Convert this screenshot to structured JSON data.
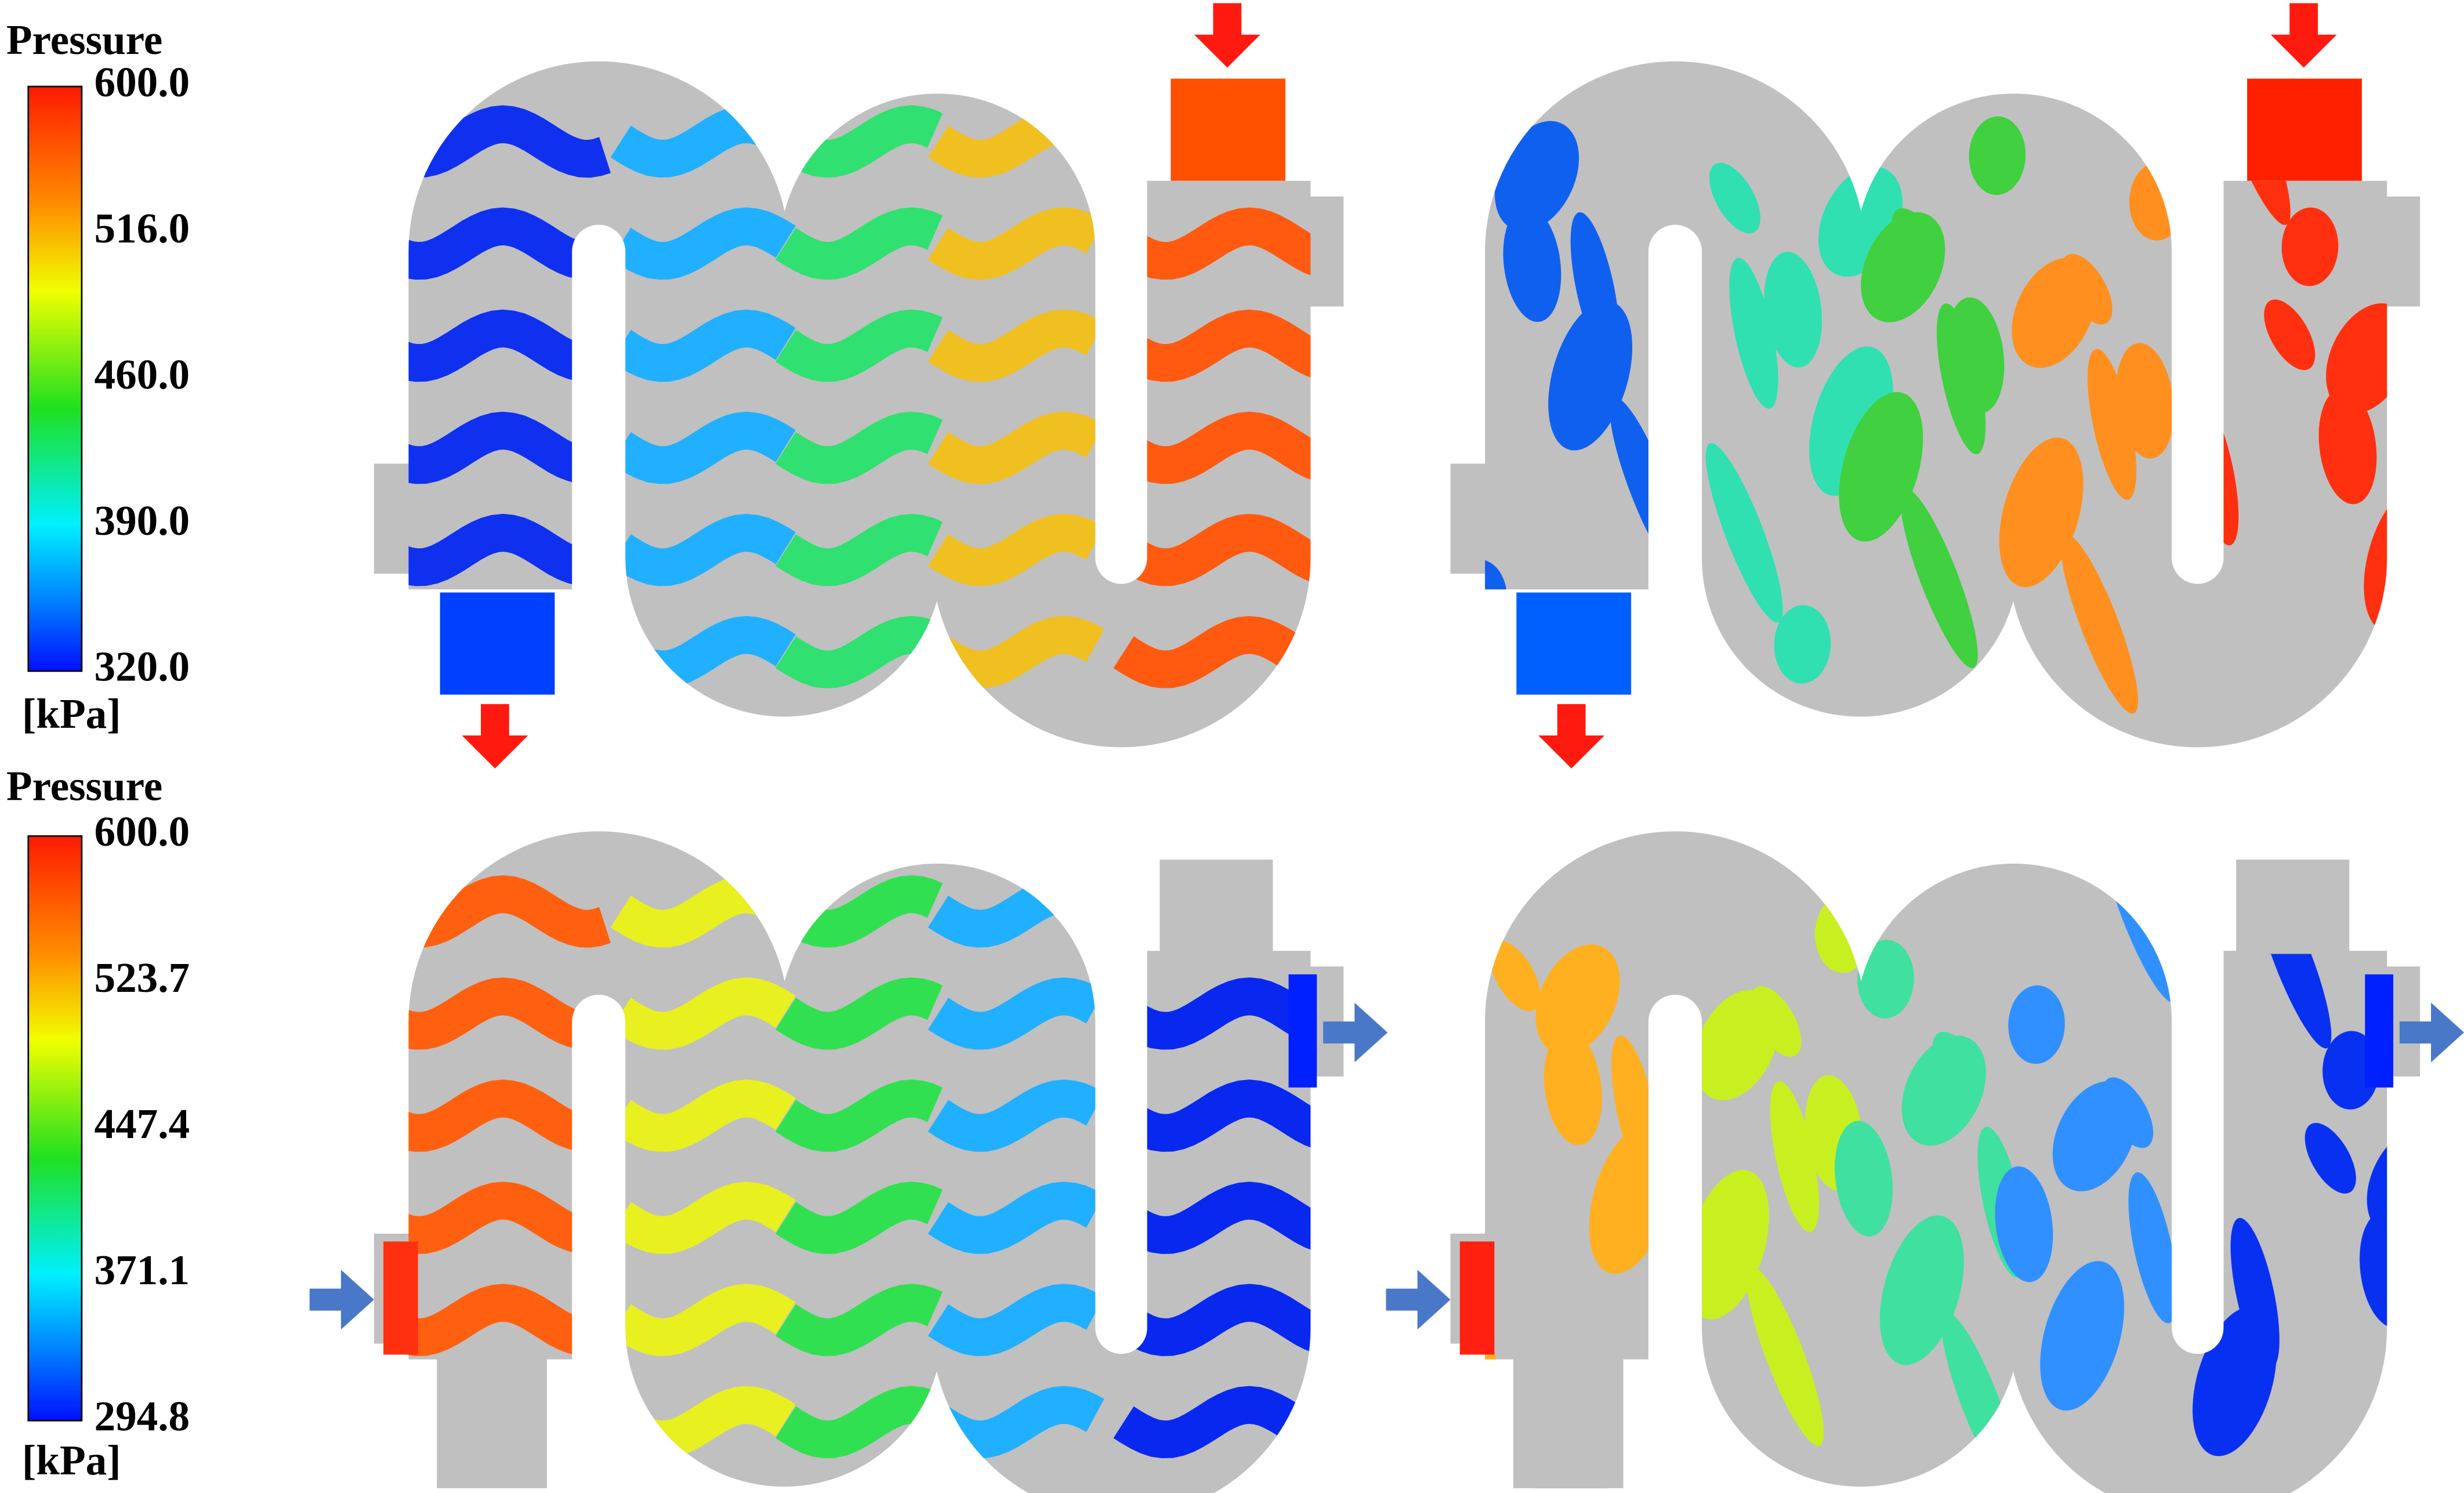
{
  "legends": [
    {
      "title": "Pressure",
      "ticks": [
        "600.0",
        "516.0",
        "460.0",
        "390.0",
        "320.0"
      ],
      "unit": "[kPa]"
    },
    {
      "title": "Pressure",
      "ticks": [
        "600.0",
        "523.7",
        "447.4",
        "371.1",
        "294.8"
      ],
      "unit": "[kPa]"
    }
  ]
}
